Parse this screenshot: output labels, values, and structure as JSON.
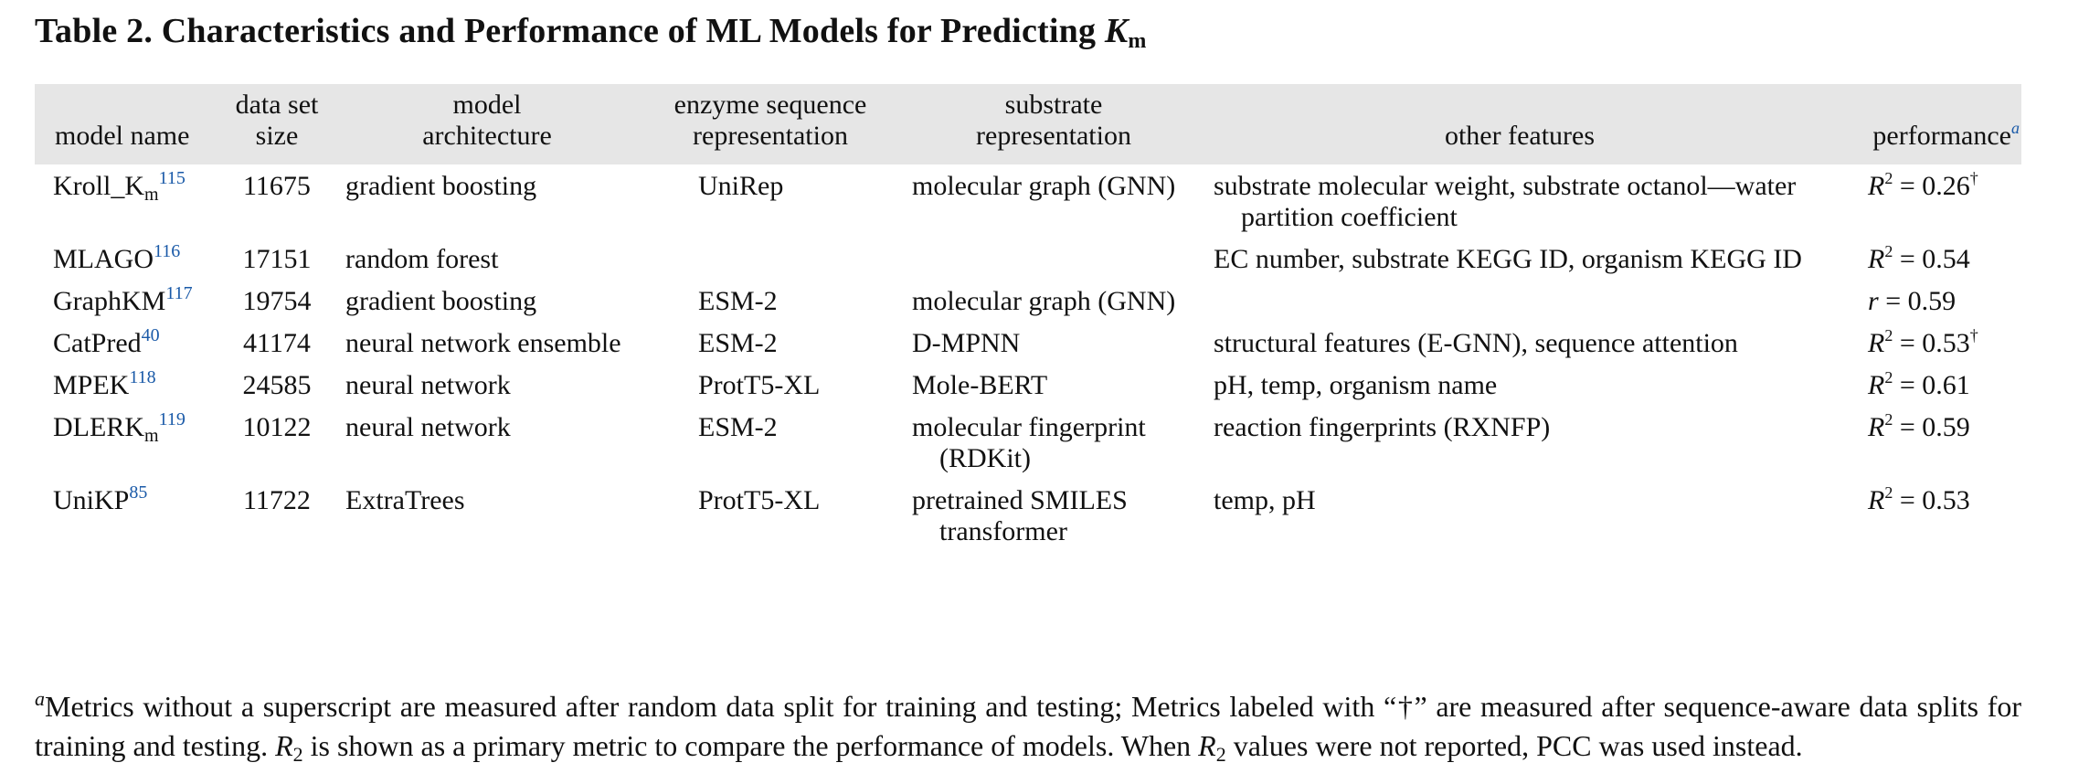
{
  "caption": {
    "label": "Table 2. Characteristics and Performance of ML Models for Predicting ",
    "symbol": "K",
    "subscript": "m"
  },
  "table": {
    "headers": {
      "model_name": "model name",
      "data_set_size": [
        "data set",
        "size"
      ],
      "model_architecture": [
        "model",
        "architecture"
      ],
      "enzyme_sequence_representation": [
        "enzyme sequence",
        "representation"
      ],
      "substrate_representation": [
        "substrate",
        "representation"
      ],
      "other_features": "other features",
      "performance": "performance",
      "performance_footnote": "a"
    },
    "rows": [
      {
        "name": "Kroll_K",
        "name_sub": "m",
        "ref": "115",
        "size": "11675",
        "architecture": "gradient boosting",
        "enzyme": "UniRep",
        "substrate": "molecular graph (GNN)",
        "other": "substrate molecular weight, substrate octanol—water partition coefficient",
        "perf_symbol": "R",
        "perf_exp": "2",
        "perf_value": " = 0.26",
        "perf_mark": "†"
      },
      {
        "name": "MLAGO",
        "name_sub": "",
        "ref": "116",
        "size": "17151",
        "architecture": "random forest",
        "enzyme": "",
        "substrate": "",
        "other": "EC number, substrate KEGG ID, organism KEGG ID",
        "perf_symbol": "R",
        "perf_exp": "2",
        "perf_value": " = 0.54",
        "perf_mark": ""
      },
      {
        "name": "GraphKM",
        "name_sub": "",
        "ref": "117",
        "size": "19754",
        "architecture": "gradient boosting",
        "enzyme": "ESM-2",
        "substrate": "molecular graph (GNN)",
        "other": "",
        "perf_symbol": "r",
        "perf_exp": "",
        "perf_value": " = 0.59",
        "perf_mark": ""
      },
      {
        "name": "CatPred",
        "name_sub": "",
        "ref": "40",
        "size": "41174",
        "architecture": "neural network ensemble",
        "enzyme": "ESM-2",
        "substrate": "D-MPNN",
        "other": "structural features (E-GNN), sequence attention",
        "perf_symbol": "R",
        "perf_exp": "2",
        "perf_value": " = 0.53",
        "perf_mark": "†"
      },
      {
        "name": "MPEK",
        "name_sub": "",
        "ref": "118",
        "size": "24585",
        "architecture": "neural network",
        "enzyme": "ProtT5-XL",
        "substrate": "Mole-BERT",
        "other": "pH, temp, organism name",
        "perf_symbol": "R",
        "perf_exp": "2",
        "perf_value": " = 0.61",
        "perf_mark": ""
      },
      {
        "name": "DLERK",
        "name_sub": "m",
        "ref": "119",
        "size": "10122",
        "architecture": "neural network",
        "enzyme": "ESM-2",
        "substrate": "molecular fingerprint (RDKit)",
        "other": "reaction fingerprints (RXNFP)",
        "perf_symbol": "R",
        "perf_exp": "2",
        "perf_value": " = 0.59",
        "perf_mark": ""
      },
      {
        "name": "UniKP",
        "name_sub": "",
        "ref": "85",
        "size": "11722",
        "architecture": "ExtraTrees",
        "enzyme": "ProtT5-XL",
        "substrate": "pretrained SMILES transformer",
        "other": "temp, pH",
        "perf_symbol": "R",
        "perf_exp": "2",
        "perf_value": " = 0.53",
        "perf_mark": ""
      }
    ]
  },
  "footnote": {
    "marker": "a",
    "part1": "Metrics without a superscript are measured after random data split for training and testing; Metrics labeled with “†” are measured after sequence-aware data splits for training and testing. ",
    "sym1": "R",
    "sub1": "2",
    "part2": " is shown as a primary metric to compare the performance of models. When ",
    "sym2": "R",
    "sub2": "2",
    "part3": " values were not reported, PCC was used instead."
  }
}
